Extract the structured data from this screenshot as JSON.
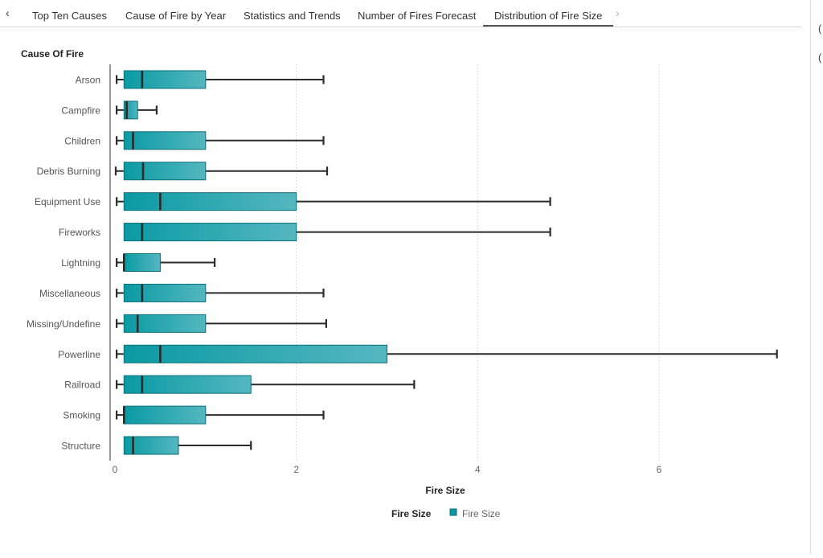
{
  "tabs": {
    "prev_icon": "chevron-left-icon",
    "next_icon": "chevron-right-icon",
    "items": [
      {
        "label": "Top Ten Causes",
        "active": false
      },
      {
        "label": "Cause of Fire by Year",
        "active": false
      },
      {
        "label": "Statistics and Trends",
        "active": false
      },
      {
        "label": "Number of Fires Forecast",
        "active": false
      },
      {
        "label": "Distribution of Fire Size",
        "active": true
      }
    ]
  },
  "colors": {
    "box_fill_dark": "#0a9aa3",
    "box_fill_light": "#55b7c0",
    "box_stroke": "#0b6f76",
    "whisker": "#2b2b2b",
    "grid": "#d0d0d0",
    "axis": "#555555",
    "accent_tab": "#555555"
  },
  "chart_data": {
    "type": "boxplot",
    "orientation": "horizontal",
    "title": "",
    "ylabel": "Cause Of Fire",
    "xlabel": "Fire Size",
    "xlim": [
      0,
      7.3
    ],
    "xticks": [
      0,
      2,
      4,
      6
    ],
    "grid": "vertical-dotted",
    "legend": {
      "placement": "bottom-center",
      "title": "Fire Size",
      "entries": [
        "Fire Size"
      ]
    },
    "categories": [
      "Arson",
      "Campfire",
      "Children",
      "Debris Burning",
      "Equipment Use",
      "Fireworks",
      "Lightning",
      "Miscellaneous",
      "Missing/Undefine",
      "Powerline",
      "Railroad",
      "Smoking",
      "Structure"
    ],
    "series": [
      {
        "name": "Fire Size",
        "boxes": [
          {
            "min": 0.01,
            "q1": 0.1,
            "median": 0.3,
            "q3": 1.0,
            "max": 2.3
          },
          {
            "min": 0.01,
            "q1": 0.1,
            "median": 0.13,
            "q3": 0.25,
            "max": 0.46
          },
          {
            "min": 0.01,
            "q1": 0.1,
            "median": 0.2,
            "q3": 1.0,
            "max": 2.3
          },
          {
            "min": 0.0,
            "q1": 0.1,
            "median": 0.31,
            "q3": 1.0,
            "max": 2.34
          },
          {
            "min": 0.01,
            "q1": 0.1,
            "median": 0.5,
            "q3": 2.0,
            "max": 4.8
          },
          {
            "min": 0.1,
            "q1": 0.1,
            "median": 0.3,
            "q3": 2.0,
            "max": 4.8
          },
          {
            "min": 0.01,
            "q1": 0.1,
            "median": 0.1,
            "q3": 0.5,
            "max": 1.1
          },
          {
            "min": 0.01,
            "q1": 0.1,
            "median": 0.3,
            "q3": 1.0,
            "max": 2.3
          },
          {
            "min": 0.01,
            "q1": 0.1,
            "median": 0.25,
            "q3": 1.0,
            "max": 2.33
          },
          {
            "min": 0.01,
            "q1": 0.1,
            "median": 0.5,
            "q3": 3.0,
            "max": 7.3
          },
          {
            "min": 0.01,
            "q1": 0.1,
            "median": 0.3,
            "q3": 1.5,
            "max": 3.3
          },
          {
            "min": 0.01,
            "q1": 0.1,
            "median": 0.1,
            "q3": 1.0,
            "max": 2.3
          },
          {
            "min": 0.1,
            "q1": 0.1,
            "median": 0.2,
            "q3": 0.7,
            "max": 1.5
          }
        ]
      }
    ]
  }
}
